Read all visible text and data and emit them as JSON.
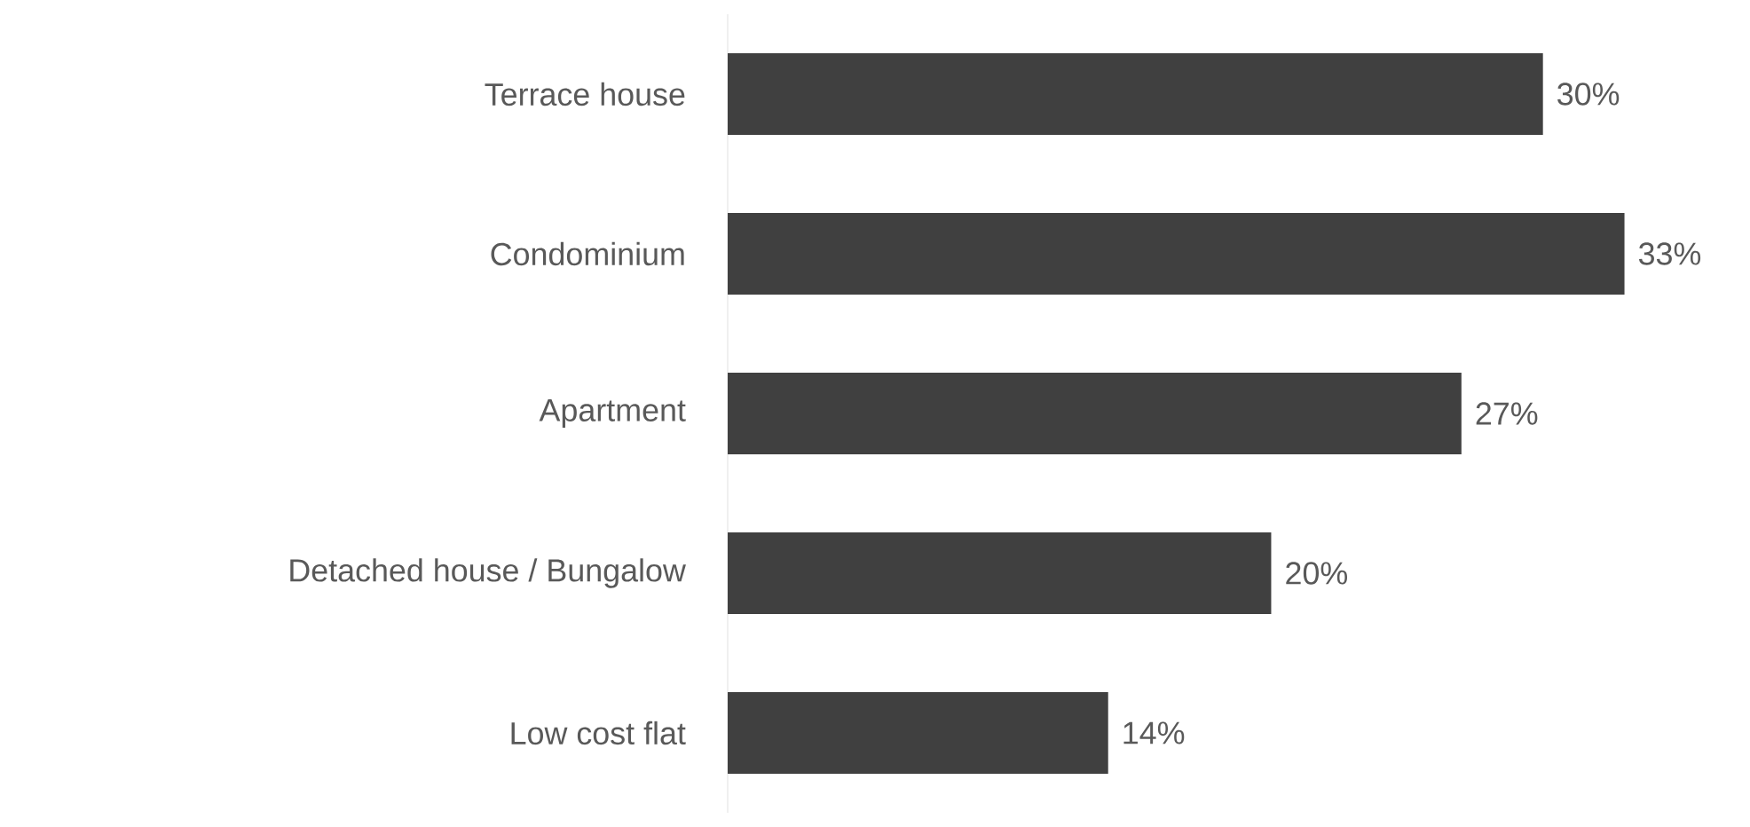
{
  "chart_data": {
    "type": "bar",
    "orientation": "horizontal",
    "categories": [
      "Terrace house",
      "Condominium",
      "Apartment",
      "Detached house / Bungalow",
      "Low cost flat"
    ],
    "values": [
      30,
      33,
      27,
      20,
      14
    ],
    "value_labels": [
      "30%",
      "33%",
      "27%",
      "20%",
      "14%"
    ],
    "color": "#404040"
  }
}
